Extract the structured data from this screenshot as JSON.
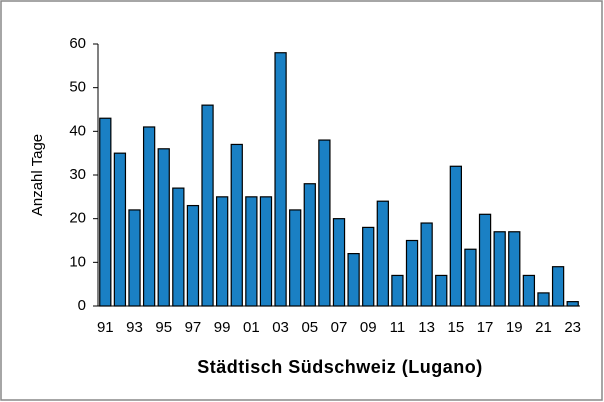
{
  "chart_data": {
    "type": "bar",
    "title": "Städtisch Südschweiz (Lugano)",
    "y_label": "Anzahl Tage",
    "categories": [
      "91",
      null,
      "93",
      null,
      "95",
      null,
      "97",
      null,
      "99",
      null,
      "01",
      null,
      "03",
      null,
      "05",
      null,
      "07",
      null,
      "09",
      null,
      "11",
      null,
      "13",
      null,
      "15",
      null,
      "17",
      null,
      "19",
      null,
      "21",
      null,
      "23"
    ],
    "values": [
      43,
      35,
      22,
      41,
      36,
      27,
      23,
      46,
      25,
      37,
      25,
      25,
      58,
      22,
      28,
      38,
      20,
      12,
      18,
      24,
      7,
      15,
      19,
      7,
      32,
      13,
      21,
      17,
      17,
      7,
      3,
      9,
      1
    ],
    "color": "#1a80c4",
    "ylim": [
      0,
      60
    ],
    "yticks": [
      0,
      10,
      20,
      30,
      40,
      50,
      60
    ],
    "grid": false
  }
}
